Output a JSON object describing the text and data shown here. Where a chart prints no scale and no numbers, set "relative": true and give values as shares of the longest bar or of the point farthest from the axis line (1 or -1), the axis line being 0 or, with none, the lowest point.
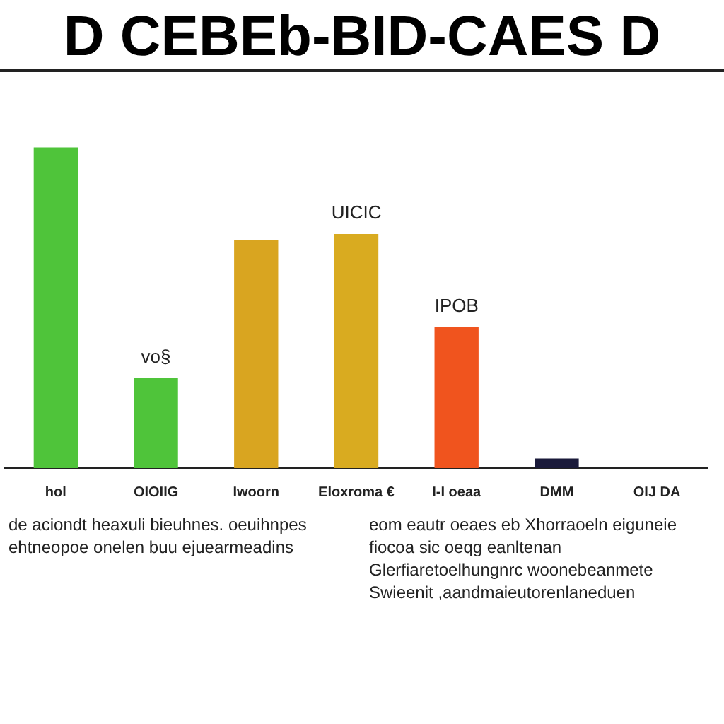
{
  "chart_data": {
    "type": "bar",
    "title": "D CEBEb-BID-CAES D",
    "relative": true,
    "categories": [
      "hol",
      "OIOIIG",
      "Iwoorn",
      "Eloxroma €",
      "I-I oeaa",
      "DMM",
      "OIJ DA"
    ],
    "values": [
      1,
      0.28,
      0.71,
      0.73,
      0.44,
      0.03,
      null
    ],
    "colors": [
      "#4fc43a",
      "#4fc43a",
      "#d9a520",
      "#d9ab20",
      "#f0541e",
      "#1a1a3a",
      "#d9245a"
    ],
    "legend": false,
    "annotations": [
      {
        "text": "vo§",
        "x": "OIOIIG",
        "y": 0.28
      },
      {
        "text": "UICIC",
        "x": "Eloxroma €",
        "y": 0.73
      },
      {
        "text": "IPOB",
        "x": "I-I oeaa",
        "y": 0.44
      },
      "de aciondt heaxuli bieuhnes. oeuihnpes ehtneopoe onelen buu ejuearmeadins",
      "eom eautr oeaes eb Xhorraoeln eiguneie fiocoa sic oeqg eanltenan Glerfiaretoelhungnrc woonebeanmete Swieenit ,aandmaieutorenlaneduen"
    ]
  }
}
